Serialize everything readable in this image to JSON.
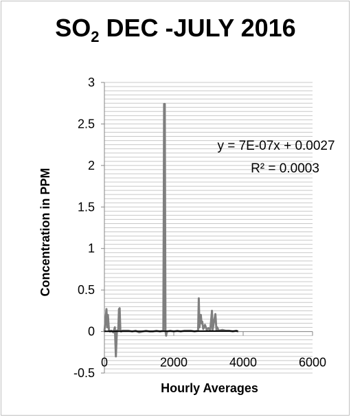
{
  "chart_data": {
    "type": "line",
    "title_main": "SO",
    "title_sub": "2",
    "title_rest": " DEC -JULY 2016",
    "xlabel": "Hourly Averages",
    "ylabel": "Concentration in PPM",
    "xlim": [
      0,
      6000
    ],
    "ylim": [
      -0.5,
      3
    ],
    "x_ticks": [
      "0",
      "2000",
      "4000",
      "6000"
    ],
    "y_ticks": [
      "-0.5",
      "0",
      "0.5",
      "1",
      "1.5",
      "2",
      "2.5",
      "3"
    ],
    "grid": true,
    "trendline_equation": "y = 7E-07x + 0.0027",
    "trendline_r2": "R² = 0.0003",
    "trendline": {
      "slope": 7e-07,
      "intercept": 0.0027
    },
    "series": [
      {
        "color": "#7f7f7f",
        "x": [
          0,
          60,
          80,
          100,
          130,
          160,
          200,
          260,
          300,
          330,
          360,
          400,
          420,
          440,
          460,
          480,
          520,
          600,
          700,
          800,
          900,
          1000,
          1100,
          1200,
          1300,
          1400,
          1500,
          1600,
          1700,
          1720,
          1740,
          1760,
          1780,
          1800,
          1900,
          2000,
          2100,
          2200,
          2300,
          2400,
          2500,
          2600,
          2700,
          2720,
          2740,
          2780,
          2800,
          2820,
          2850,
          2900,
          2950,
          3000,
          3050,
          3100,
          3120,
          3150,
          3200,
          3230,
          3250,
          3300,
          3400,
          3500,
          3600,
          3700,
          3800,
          3850
        ],
        "y": [
          0,
          0.27,
          0.05,
          0.2,
          0.02,
          0,
          0.01,
          -0.01,
          0.05,
          -0.3,
          0.01,
          0.02,
          0.27,
          0.28,
          0.02,
          0,
          0.01,
          0.01,
          0.01,
          0,
          0.01,
          -0.01,
          0,
          0.01,
          0,
          0,
          0.01,
          0,
          0.01,
          2.74,
          2.74,
          0.01,
          -0.05,
          0,
          0.01,
          0,
          0.01,
          0,
          0.01,
          0.01,
          0.01,
          0,
          0.01,
          0.4,
          0.05,
          0.2,
          0.1,
          0.12,
          0.03,
          0.08,
          0.02,
          0.04,
          0.01,
          0.25,
          0.02,
          0.1,
          0.21,
          0.02,
          0.05,
          0.01,
          0.02,
          0.01,
          0.01,
          0,
          0.01,
          0
        ]
      }
    ]
  }
}
